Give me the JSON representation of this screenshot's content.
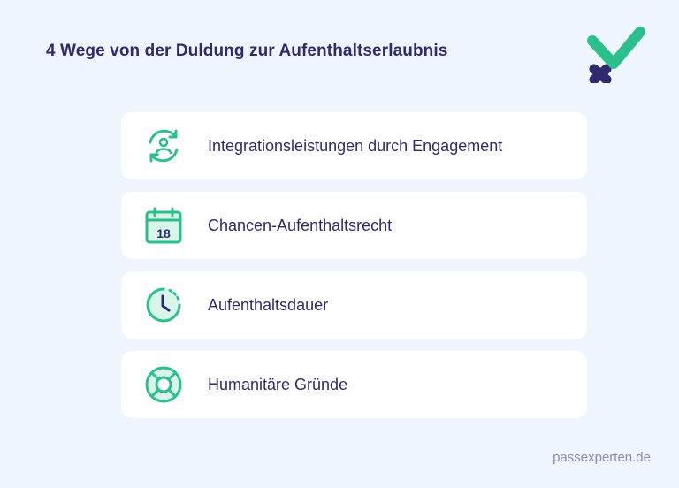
{
  "header": {
    "title": "4 Wege von der Duldung zur Aufenthaltserlaubnis",
    "logo_icon": "check-cross-logo"
  },
  "colors": {
    "background": "#eef5fd",
    "accent_green": "#2bbf8c",
    "brand_navy": "#2e2a6b",
    "footer_text": "#8f8ab8"
  },
  "items": [
    {
      "label": "Integrationsleistungen durch Engagement",
      "icon": "person-cycle-icon"
    },
    {
      "label": "Chancen-Aufenthaltsrecht",
      "icon": "calendar-icon",
      "icon_text": "18"
    },
    {
      "label": "Aufenthaltsdauer",
      "icon": "clock-icon"
    },
    {
      "label": "Humanitäre Gründe",
      "icon": "lifebuoy-icon"
    }
  ],
  "footer": {
    "site": "passexperten.de"
  }
}
